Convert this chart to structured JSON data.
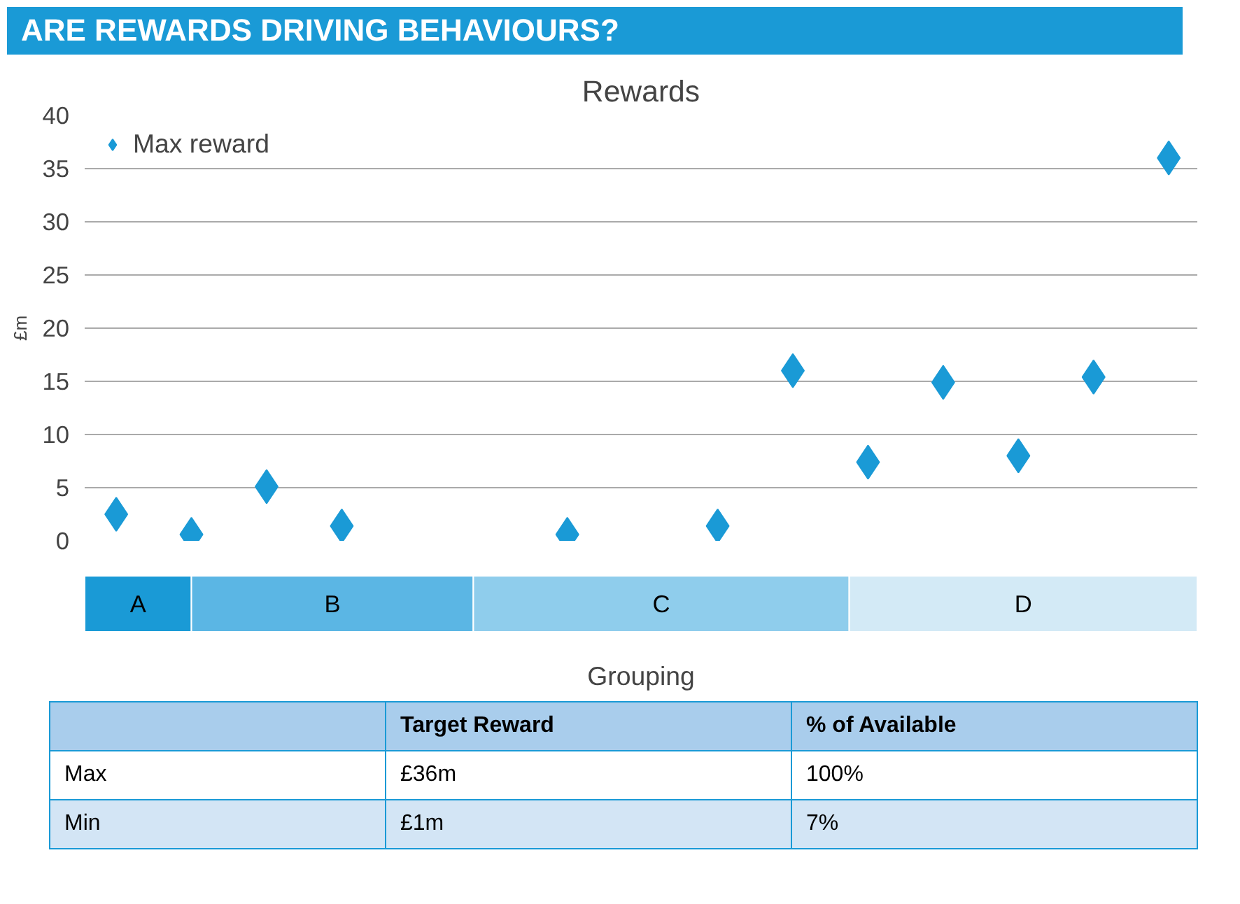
{
  "chart_data": {
    "type": "scatter",
    "title": "ARE REWARDS DRIVING BEHAVIOURS?",
    "subtitle": "Rewards",
    "xlabel": "Grouping",
    "ylabel": "£m",
    "categories": [
      null,
      null,
      null,
      null,
      null,
      null,
      null,
      null,
      null,
      null,
      null,
      null,
      null,
      null,
      null
    ],
    "series": [
      {
        "name": "Max reward",
        "color": "#1a9ad6",
        "values": [
          2.5,
          0.6,
          5.1,
          1.4,
          null,
          null,
          0.6,
          null,
          1.4,
          16,
          7.4,
          14.9,
          8,
          15.4,
          36
        ]
      }
    ],
    "ylim": [
      0,
      40
    ],
    "yticks": [
      0,
      5,
      10,
      15,
      20,
      25,
      30,
      35,
      40
    ],
    "grid": "y",
    "legend": "top left",
    "marker": "diamond",
    "tick_labels": "y",
    "annotations": [
      "A",
      "B",
      "C",
      "D",
      "Target Reward",
      "% of Available",
      "Max",
      "£36m",
      "100%",
      "Min",
      "£1m",
      "7%"
    ]
  }
}
